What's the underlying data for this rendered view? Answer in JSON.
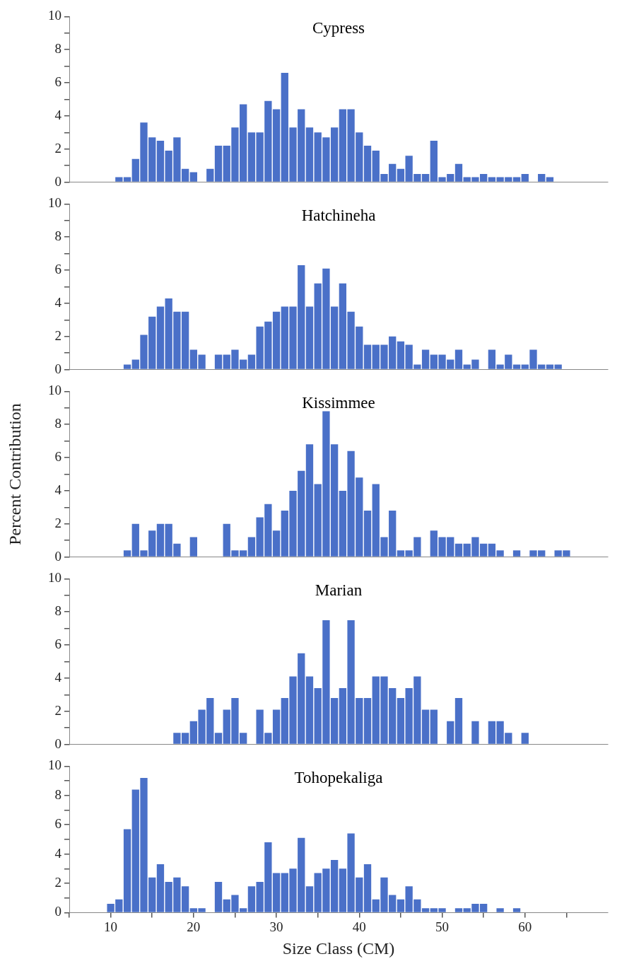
{
  "chart_data": [
    {
      "type": "histogram",
      "title": "Cypress",
      "bins": [
        9.5,
        10.5,
        11.5,
        12.5,
        13.5,
        14.5,
        15.5,
        16.5,
        17.5,
        18.5,
        19.5,
        20.5,
        21.5,
        22.5,
        23.5,
        24.5,
        25.5,
        26.5,
        27.5,
        28.5,
        29.5,
        30.5,
        31.5,
        32.5,
        33.5,
        34.5,
        35.5,
        36.5,
        37.5,
        38.5,
        39.5,
        40.5,
        41.5,
        42.5,
        43.5,
        44.5,
        45.5,
        46.5,
        47.5,
        48.5,
        49.5,
        50.5,
        51.5,
        52.5,
        53.5,
        54.5,
        55.5,
        56.5,
        57.5,
        58.5,
        59.5,
        60.5,
        61.5,
        62.5,
        63.5,
        64.5,
        65.5
      ],
      "values": [
        0,
        0.3,
        0.3,
        1.4,
        3.6,
        2.7,
        2.5,
        1.9,
        2.7,
        0.8,
        0.6,
        0,
        0.8,
        2.2,
        2.2,
        3.3,
        4.7,
        3.0,
        3.0,
        4.9,
        4.4,
        6.6,
        3.3,
        4.4,
        3.3,
        3.0,
        2.7,
        3.3,
        4.4,
        4.4,
        3.0,
        2.2,
        1.9,
        0.5,
        1.1,
        0.8,
        1.6,
        0.5,
        0.5,
        2.5,
        0.3,
        0.5,
        1.1,
        0.3,
        0.3,
        0.5,
        0.3,
        0.3,
        0.3,
        0.3,
        0.5,
        0,
        0.5,
        0.3,
        0,
        0
      ],
      "color": "#4a70c8",
      "xlim": [
        5,
        70
      ],
      "ylim": [
        0,
        10
      ],
      "yticks": [
        0,
        {
          "value": 1,
          "label": null
        },
        2,
        {
          "value": 3,
          "label": null
        },
        4,
        {
          "value": 5,
          "label": null
        },
        6,
        {
          "value": 7,
          "label": null
        },
        8,
        {
          "value": 9,
          "label": null
        },
        10
      ],
      "tick_labels": "y"
    },
    {
      "type": "histogram",
      "title": "Hatchineha",
      "bins": [
        9.5,
        10.5,
        11.5,
        12.5,
        13.5,
        14.5,
        15.5,
        16.5,
        17.5,
        18.5,
        19.5,
        20.5,
        21.5,
        22.5,
        23.5,
        24.5,
        25.5,
        26.5,
        27.5,
        28.5,
        29.5,
        30.5,
        31.5,
        32.5,
        33.5,
        34.5,
        35.5,
        36.5,
        37.5,
        38.5,
        39.5,
        40.5,
        41.5,
        42.5,
        43.5,
        44.5,
        45.5,
        46.5,
        47.5,
        48.5,
        49.5,
        50.5,
        51.5,
        52.5,
        53.5,
        54.5,
        55.5,
        56.5,
        57.5,
        58.5,
        59.5,
        60.5,
        61.5,
        62.5,
        63.5,
        64.5,
        65.5
      ],
      "values": [
        0,
        0,
        0.3,
        0.6,
        2.1,
        3.2,
        3.8,
        4.3,
        3.5,
        3.5,
        1.2,
        0.9,
        0,
        0.9,
        0.9,
        1.2,
        0.6,
        0.9,
        2.6,
        2.9,
        3.5,
        3.8,
        3.8,
        6.3,
        3.8,
        5.2,
        6.1,
        3.8,
        5.2,
        3.5,
        2.6,
        1.5,
        1.5,
        1.5,
        2.0,
        1.7,
        1.5,
        0.3,
        1.2,
        0.9,
        0.9,
        0.6,
        1.2,
        0.3,
        0.6,
        0,
        1.2,
        0.3,
        0.9,
        0.3,
        0.3,
        1.2,
        0.3,
        0.3,
        0.3,
        0
      ],
      "color": "#4a70c8",
      "xlim": [
        5,
        70
      ],
      "ylim": [
        0,
        10
      ],
      "yticks": [
        0,
        {
          "value": 1,
          "label": null
        },
        2,
        {
          "value": 3,
          "label": null
        },
        4,
        {
          "value": 5,
          "label": null
        },
        6,
        {
          "value": 7,
          "label": null
        },
        8,
        {
          "value": 9,
          "label": null
        },
        10
      ],
      "tick_labels": "y"
    },
    {
      "type": "histogram",
      "title": "Kissimmee",
      "ylabel": "Percent Contribution",
      "bins": [
        9.5,
        10.5,
        11.5,
        12.5,
        13.5,
        14.5,
        15.5,
        16.5,
        17.5,
        18.5,
        19.5,
        20.5,
        21.5,
        22.5,
        23.5,
        24.5,
        25.5,
        26.5,
        27.5,
        28.5,
        29.5,
        30.5,
        31.5,
        32.5,
        33.5,
        34.5,
        35.5,
        36.5,
        37.5,
        38.5,
        39.5,
        40.5,
        41.5,
        42.5,
        43.5,
        44.5,
        45.5,
        46.5,
        47.5,
        48.5,
        49.5,
        50.5,
        51.5,
        52.5,
        53.5,
        54.5,
        55.5,
        56.5,
        57.5,
        58.5,
        59.5,
        60.5,
        61.5,
        62.5,
        63.5,
        64.5,
        65.5
      ],
      "values": [
        0,
        0,
        0.4,
        2.0,
        0.4,
        1.6,
        2.0,
        2.0,
        0.8,
        0,
        1.2,
        0,
        0,
        0,
        2.0,
        0.4,
        0.4,
        1.2,
        2.4,
        3.2,
        1.6,
        2.8,
        4.0,
        5.2,
        6.8,
        4.4,
        8.8,
        6.8,
        4.0,
        6.4,
        4.8,
        2.8,
        4.4,
        1.2,
        2.8,
        0.4,
        0.4,
        1.2,
        0,
        1.6,
        1.2,
        1.2,
        0.8,
        0.8,
        1.2,
        0.8,
        0.8,
        0.4,
        0,
        0.4,
        0,
        0.4,
        0.4,
        0,
        0.4,
        0.4
      ],
      "color": "#4a70c8",
      "xlim": [
        5,
        70
      ],
      "ylim": [
        0,
        10
      ],
      "yticks": [
        0,
        {
          "value": 1,
          "label": null
        },
        2,
        {
          "value": 3,
          "label": null
        },
        4,
        {
          "value": 5,
          "label": null
        },
        6,
        {
          "value": 7,
          "label": null
        },
        8,
        {
          "value": 9,
          "label": null
        },
        10
      ],
      "tick_labels": "y"
    },
    {
      "type": "histogram",
      "title": "Marian",
      "bins": [
        9.5,
        10.5,
        11.5,
        12.5,
        13.5,
        14.5,
        15.5,
        16.5,
        17.5,
        18.5,
        19.5,
        20.5,
        21.5,
        22.5,
        23.5,
        24.5,
        25.5,
        26.5,
        27.5,
        28.5,
        29.5,
        30.5,
        31.5,
        32.5,
        33.5,
        34.5,
        35.5,
        36.5,
        37.5,
        38.5,
        39.5,
        40.5,
        41.5,
        42.5,
        43.5,
        44.5,
        45.5,
        46.5,
        47.5,
        48.5,
        49.5,
        50.5,
        51.5,
        52.5,
        53.5,
        54.5,
        55.5,
        56.5,
        57.5,
        58.5,
        59.5,
        60.5,
        61.5,
        62.5,
        63.5,
        64.5,
        65.5
      ],
      "values": [
        0,
        0,
        0,
        0,
        0,
        0,
        0,
        0,
        0.7,
        0.7,
        1.4,
        2.1,
        2.8,
        0.7,
        2.1,
        2.8,
        0.7,
        0,
        2.1,
        0.7,
        2.1,
        2.8,
        4.1,
        5.5,
        4.1,
        3.4,
        7.5,
        2.8,
        3.4,
        7.5,
        2.8,
        2.8,
        4.1,
        4.1,
        3.4,
        2.8,
        3.4,
        4.1,
        2.1,
        2.1,
        0,
        1.4,
        2.8,
        0,
        1.4,
        0,
        1.4,
        1.4,
        0.7,
        0,
        0.7,
        0,
        0,
        0,
        0,
        0
      ],
      "color": "#4a70c8",
      "xlim": [
        5,
        70
      ],
      "ylim": [
        0,
        10
      ],
      "yticks": [
        0,
        {
          "value": 1,
          "label": null
        },
        2,
        {
          "value": 3,
          "label": null
        },
        4,
        {
          "value": 5,
          "label": null
        },
        6,
        {
          "value": 7,
          "label": null
        },
        8,
        {
          "value": 9,
          "label": null
        },
        10
      ],
      "tick_labels": "y"
    },
    {
      "type": "histogram",
      "title": "Tohopekaliga",
      "xlabel": "Size Class (CM)",
      "bins": [
        9.5,
        10.5,
        11.5,
        12.5,
        13.5,
        14.5,
        15.5,
        16.5,
        17.5,
        18.5,
        19.5,
        20.5,
        21.5,
        22.5,
        23.5,
        24.5,
        25.5,
        26.5,
        27.5,
        28.5,
        29.5,
        30.5,
        31.5,
        32.5,
        33.5,
        34.5,
        35.5,
        36.5,
        37.5,
        38.5,
        39.5,
        40.5,
        41.5,
        42.5,
        43.5,
        44.5,
        45.5,
        46.5,
        47.5,
        48.5,
        49.5,
        50.5,
        51.5,
        52.5,
        53.5,
        54.5,
        55.5,
        56.5,
        57.5,
        58.5,
        59.5,
        60.5,
        61.5,
        62.5,
        63.5,
        64.5,
        65.5
      ],
      "values": [
        0.6,
        0.9,
        5.7,
        8.4,
        9.2,
        2.4,
        3.3,
        2.1,
        2.4,
        1.8,
        0.3,
        0.3,
        0,
        2.1,
        0.9,
        1.2,
        0.3,
        1.8,
        2.1,
        4.8,
        2.7,
        2.7,
        3.0,
        5.1,
        1.8,
        2.7,
        3.0,
        3.6,
        3.0,
        5.4,
        2.4,
        3.3,
        0.9,
        2.4,
        1.2,
        0.9,
        1.8,
        0.9,
        0.3,
        0.3,
        0.3,
        0,
        0.3,
        0.3,
        0.6,
        0.6,
        0,
        0.3,
        0,
        0.3,
        0,
        0,
        0,
        0,
        0,
        0
      ],
      "color": "#4a70c8",
      "xlim": [
        5,
        70
      ],
      "xticks": [
        {
          "value": 5,
          "label": null
        },
        10,
        {
          "value": 15,
          "label": null
        },
        20,
        {
          "value": 25,
          "label": null
        },
        30,
        {
          "value": 35,
          "label": null
        },
        40,
        {
          "value": 45,
          "label": null
        },
        50,
        {
          "value": 55,
          "label": null
        },
        60,
        {
          "value": 65,
          "label": null
        }
      ],
      "ylim": [
        0,
        10
      ],
      "yticks": [
        0,
        {
          "value": 1,
          "label": null
        },
        2,
        {
          "value": 3,
          "label": null
        },
        4,
        {
          "value": 5,
          "label": null
        },
        6,
        {
          "value": 7,
          "label": null
        },
        8,
        {
          "value": 9,
          "label": null
        },
        10
      ]
    }
  ]
}
